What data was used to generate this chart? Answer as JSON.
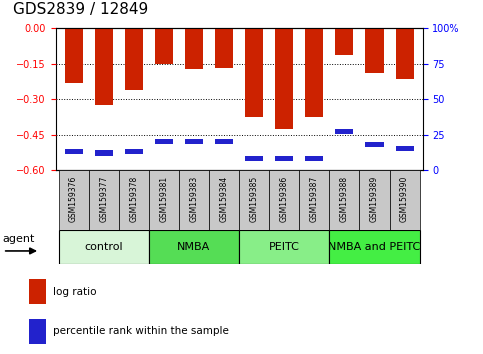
{
  "title": "GDS2839 / 12849",
  "samples": [
    "GSM159376",
    "GSM159377",
    "GSM159378",
    "GSM159381",
    "GSM159383",
    "GSM159384",
    "GSM159385",
    "GSM159386",
    "GSM159387",
    "GSM159388",
    "GSM159389",
    "GSM159390"
  ],
  "log_ratio": [
    -0.23,
    -0.325,
    -0.26,
    -0.152,
    -0.172,
    -0.168,
    -0.375,
    -0.428,
    -0.375,
    -0.112,
    -0.188,
    -0.215
  ],
  "percentile": [
    13,
    12,
    13,
    20,
    20,
    20,
    8,
    8,
    8,
    27,
    18,
    15
  ],
  "ylim_left": [
    -0.6,
    0
  ],
  "ylim_right": [
    0,
    100
  ],
  "yticks_left": [
    0,
    -0.15,
    -0.3,
    -0.45,
    -0.6
  ],
  "yticks_right": [
    0,
    25,
    50,
    75,
    100
  ],
  "bar_color": "#cc2200",
  "blue_color": "#2222cc",
  "groups": [
    {
      "label": "control",
      "start": 0,
      "end": 3,
      "color": "#d8f5d8"
    },
    {
      "label": "NMBA",
      "start": 3,
      "end": 6,
      "color": "#55dd55"
    },
    {
      "label": "PEITC",
      "start": 6,
      "end": 9,
      "color": "#88ee88"
    },
    {
      "label": "NMBA and PEITC",
      "start": 9,
      "end": 12,
      "color": "#44ee44"
    }
  ],
  "agent_label": "agent",
  "legend_red": "log ratio",
  "legend_blue": "percentile rank within the sample",
  "bar_width": 0.6,
  "title_fontsize": 11,
  "tick_fontsize": 7,
  "group_fontsize": 8,
  "sample_fontsize": 5.5
}
